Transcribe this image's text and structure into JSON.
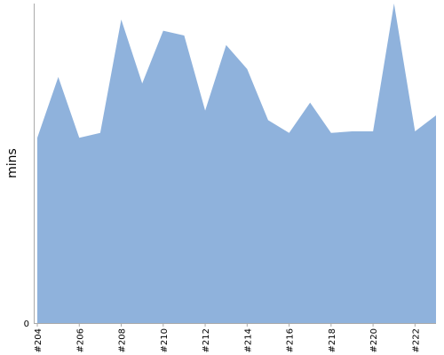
{
  "chart_data": {
    "type": "area",
    "title": "",
    "xlabel": "",
    "ylabel": "mins",
    "x": [
      "#204",
      "#205",
      "#206",
      "#207",
      "#208",
      "#209",
      "#210",
      "#211",
      "#212",
      "#213",
      "#214",
      "#215",
      "#216",
      "#217",
      "#218",
      "#219",
      "#220",
      "#221",
      "#222",
      "#223"
    ],
    "x_tick_labels": [
      "#204",
      "#206",
      "#208",
      "#210",
      "#212",
      "#214",
      "#216",
      "#218",
      "#220",
      "#222"
    ],
    "y_tick_labels": [
      "0"
    ],
    "series": [
      {
        "values": [
          58,
          77,
          58,
          59.5,
          95,
          75,
          91.5,
          90,
          66.5,
          87,
          79.5,
          63.5,
          59.5,
          69,
          59.5,
          60,
          60,
          100,
          60,
          65
        ]
      }
    ],
    "ylim": [
      0,
      100
    ],
    "grid": false,
    "legend": "none",
    "colors": {
      "area": "#8fb2dc",
      "axis": "#aaaaaa"
    }
  }
}
